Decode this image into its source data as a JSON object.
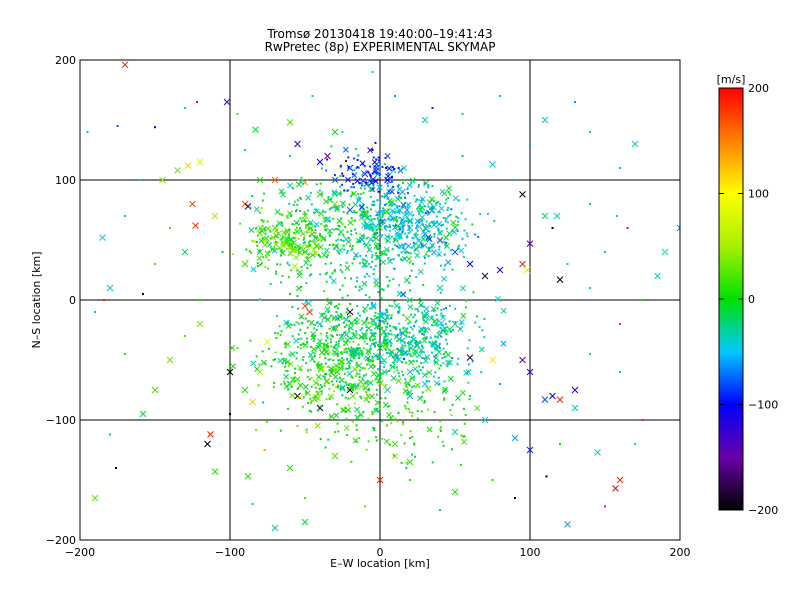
{
  "chart_data": {
    "type": "scatter",
    "title": "Tromsø 20130418 19:40:00–19:41:43",
    "subtitle": "RwPretec (8p) EXPERIMENTAL SKYMAP",
    "xlabel": "E–W location [km]",
    "ylabel": "N–S location [km]",
    "xlim": [
      -200,
      200
    ],
    "ylim": [
      -200,
      200
    ],
    "xticks": [
      "−200",
      "−100",
      "0",
      "100",
      "200"
    ],
    "xtick_values": [
      -200,
      -100,
      0,
      100,
      200
    ],
    "yticks": [
      "−200",
      "−100",
      "0",
      "100",
      "200"
    ],
    "ytick_values": [
      -200,
      -100,
      0,
      100,
      200
    ],
    "grid": "on at ±100 and 0",
    "colorbar": {
      "label": "[m/s]",
      "range": [
        -200,
        200
      ],
      "ticks": [
        "200",
        "100",
        "0",
        "−100",
        "−200"
      ],
      "tick_values": [
        200,
        100,
        0,
        -100,
        -200
      ]
    },
    "series": [
      {
        "name": "",
        "marker": "x",
        "points": [
          [
            -170,
            196,
            190
          ],
          [
            -102,
            165,
            -130
          ],
          [
            -83,
            142,
            -10
          ],
          [
            -60,
            148,
            20
          ],
          [
            -128,
            112,
            120
          ],
          [
            -120,
            115,
            80
          ],
          [
            -135,
            108,
            30
          ],
          [
            -145,
            100,
            40
          ],
          [
            -80,
            100,
            10
          ],
          [
            -70,
            100,
            160
          ],
          [
            -50,
            98,
            140
          ],
          [
            -30,
            100,
            50
          ],
          [
            -35,
            120,
            -140
          ],
          [
            -55,
            130,
            -120
          ],
          [
            -40,
            115,
            -100
          ],
          [
            -20,
            110,
            -90
          ],
          [
            -10,
            105,
            -130
          ],
          [
            5,
            100,
            -100
          ],
          [
            15,
            90,
            -60
          ],
          [
            -40,
            88,
            10
          ],
          [
            -30,
            80,
            40
          ],
          [
            -20,
            75,
            -80
          ],
          [
            -10,
            70,
            -30
          ],
          [
            0,
            65,
            -20
          ],
          [
            -125,
            80,
            170
          ],
          [
            -123,
            62,
            180
          ],
          [
            -130,
            40,
            -20
          ],
          [
            -110,
            70,
            50
          ],
          [
            -90,
            80,
            170
          ],
          [
            -88,
            78,
            -180
          ],
          [
            -70,
            60,
            20
          ],
          [
            -60,
            50,
            10
          ],
          [
            -50,
            40,
            0
          ],
          [
            -80,
            40,
            20
          ],
          [
            -90,
            30,
            10
          ],
          [
            -50,
            70,
            30
          ],
          [
            20,
            60,
            -40
          ],
          [
            30,
            55,
            -60
          ],
          [
            40,
            50,
            170
          ],
          [
            50,
            40,
            -80
          ],
          [
            60,
            30,
            -100
          ],
          [
            70,
            20,
            -180
          ],
          [
            80,
            25,
            -120
          ],
          [
            95,
            30,
            190
          ],
          [
            98,
            25,
            80
          ],
          [
            100,
            47,
            -140
          ],
          [
            95,
            88,
            -200
          ],
          [
            110,
            70,
            -20
          ],
          [
            118,
            70,
            -30
          ],
          [
            120,
            17,
            -200
          ],
          [
            -50,
            -5,
            170
          ],
          [
            -47,
            -10,
            180
          ],
          [
            -40,
            -20,
            -40
          ],
          [
            -30,
            -15,
            20
          ],
          [
            -20,
            -10,
            -180
          ],
          [
            -10,
            -30,
            30
          ],
          [
            0,
            -40,
            -20
          ],
          [
            10,
            -50,
            -30
          ],
          [
            20,
            -60,
            -40
          ],
          [
            30,
            -70,
            -50
          ],
          [
            -75,
            -35,
            80
          ],
          [
            -80,
            -60,
            60
          ],
          [
            -100,
            -60,
            -200
          ],
          [
            -90,
            -75,
            10
          ],
          [
            -85,
            -85,
            120
          ],
          [
            -60,
            -70,
            20
          ],
          [
            -55,
            -80,
            -200
          ],
          [
            -40,
            -90,
            -200
          ],
          [
            -20,
            -75,
            -190
          ],
          [
            5,
            -75,
            -40
          ],
          [
            20,
            -80,
            -60
          ],
          [
            -120,
            -20,
            40
          ],
          [
            -140,
            -50,
            30
          ],
          [
            -150,
            -75,
            20
          ],
          [
            -158,
            -95,
            -10
          ],
          [
            -115,
            -120,
            -200
          ],
          [
            -113,
            -112,
            190
          ],
          [
            -110,
            -143,
            10
          ],
          [
            -88,
            -147,
            10
          ],
          [
            -60,
            -140,
            10
          ],
          [
            -30,
            -130,
            20
          ],
          [
            0,
            -150,
            190
          ],
          [
            10,
            -120,
            20
          ],
          [
            20,
            -135,
            10
          ],
          [
            50,
            -110,
            -30
          ],
          [
            70,
            -100,
            -50
          ],
          [
            90,
            -115,
            -60
          ],
          [
            110,
            -83,
            -80
          ],
          [
            115,
            -80,
            -100
          ],
          [
            120,
            -83,
            190
          ],
          [
            130,
            -90,
            -40
          ],
          [
            130,
            -75,
            -110
          ],
          [
            100,
            -60,
            -130
          ],
          [
            95,
            -50,
            -140
          ],
          [
            75,
            -50,
            110
          ],
          [
            60,
            -48,
            -180
          ],
          [
            100,
            -125,
            -90
          ],
          [
            50,
            -160,
            10
          ],
          [
            -190,
            -165,
            30
          ],
          [
            -180,
            10,
            -40
          ],
          [
            -185,
            52,
            -40
          ],
          [
            -30,
            140,
            0
          ],
          [
            30,
            150,
            -40
          ],
          [
            75,
            113,
            -40
          ],
          [
            110,
            150,
            -40
          ],
          [
            170,
            130,
            -40
          ],
          [
            190,
            40,
            -40
          ],
          [
            185,
            20,
            -40
          ],
          [
            200,
            60,
            -60
          ],
          [
            160,
            -150,
            190
          ],
          [
            157,
            -157,
            200
          ],
          [
            -50,
            -185,
            -10
          ],
          [
            -70,
            -190,
            -20
          ],
          [
            125,
            -187,
            -60
          ],
          [
            145,
            -127,
            -40
          ],
          [
            -35,
            67,
            -60
          ],
          [
            -10,
            30,
            -40
          ],
          [
            40,
            10,
            -30
          ],
          [
            50,
            -20,
            -20
          ],
          [
            -15,
            -45,
            10
          ]
        ]
      },
      {
        "name": "",
        "marker": "dot",
        "points": [
          [
            -150,
            144,
            -100
          ],
          [
            -122,
            165,
            190
          ],
          [
            -90,
            125,
            -40
          ],
          [
            -45,
            170,
            -30
          ],
          [
            -5,
            190,
            -50
          ],
          [
            10,
            170,
            -60
          ],
          [
            35,
            160,
            -150
          ],
          [
            55,
            155,
            -40
          ],
          [
            80,
            170,
            -40
          ],
          [
            130,
            165,
            -60
          ],
          [
            160,
            110,
            -20
          ],
          [
            140,
            140,
            -40
          ],
          [
            -175,
            145,
            -80
          ],
          [
            -160,
            100,
            -30
          ],
          [
            -158,
            5,
            -200
          ],
          [
            -170,
            -45,
            10
          ],
          [
            -180,
            -112,
            -40
          ],
          [
            -176,
            -140,
            -200
          ],
          [
            -95,
            -40,
            20
          ],
          [
            -100,
            -95,
            -200
          ],
          [
            -77,
            -125,
            140
          ],
          [
            -85,
            -170,
            -20
          ],
          [
            -50,
            -165,
            20
          ],
          [
            -10,
            -172,
            30
          ],
          [
            20,
            -150,
            10
          ],
          [
            40,
            -175,
            -20
          ],
          [
            75,
            -150,
            10
          ],
          [
            90,
            -165,
            -200
          ],
          [
            111,
            -147,
            -200
          ],
          [
            120,
            -120,
            10
          ],
          [
            150,
            -172,
            190
          ],
          [
            175,
            -100,
            190
          ],
          [
            170,
            -120,
            -30
          ],
          [
            175,
            0,
            10
          ],
          [
            158,
            70,
            -50
          ],
          [
            165,
            60,
            190
          ],
          [
            190,
            40,
            40
          ],
          [
            -190,
            -10,
            -20
          ],
          [
            -184,
            0,
            190
          ],
          [
            -130,
            -30,
            20
          ],
          [
            -120,
            0,
            10
          ],
          [
            -150,
            30,
            20
          ],
          [
            -140,
            60,
            20
          ],
          [
            -105,
            40,
            -10
          ],
          [
            55,
            120,
            -20
          ],
          [
            90,
            100,
            -30
          ],
          [
            115,
            60,
            -200
          ],
          [
            125,
            30,
            -40
          ],
          [
            140,
            10,
            -40
          ],
          [
            160,
            -20,
            180
          ],
          [
            160,
            -60,
            -30
          ],
          [
            140,
            -45,
            -40
          ],
          [
            -60,
            5,
            0
          ],
          [
            -30,
            25,
            10
          ],
          [
            0,
            10,
            -30
          ],
          [
            20,
            20,
            -20
          ],
          [
            30,
            35,
            -40
          ],
          [
            -40,
            55,
            -10
          ],
          [
            -20,
            45,
            20
          ],
          [
            10,
            50,
            -40
          ],
          [
            45,
            75,
            -40
          ],
          [
            35,
            95,
            -20
          ],
          [
            -5,
            125,
            -100
          ],
          [
            -25,
            140,
            -50
          ],
          [
            -65,
            20,
            20
          ],
          [
            -45,
            -30,
            10
          ],
          [
            -25,
            -55,
            20
          ],
          [
            5,
            -20,
            -30
          ],
          [
            25,
            -35,
            -30
          ],
          [
            45,
            -55,
            -40
          ],
          [
            -5,
            -95,
            10
          ],
          [
            -30,
            -110,
            20
          ],
          [
            -55,
            -105,
            30
          ],
          [
            30,
            -100,
            -10
          ],
          [
            60,
            -80,
            -40
          ],
          [
            80,
            -70,
            -60
          ],
          [
            -130,
            160,
            -40
          ],
          [
            -95,
            155,
            20
          ],
          [
            -60,
            120,
            -20
          ],
          [
            100,
            130,
            -10
          ],
          [
            140,
            80,
            -30
          ],
          [
            150,
            40,
            -20
          ],
          [
            -170,
            70,
            -40
          ],
          [
            -195,
            140,
            -30
          ]
        ]
      }
    ]
  }
}
